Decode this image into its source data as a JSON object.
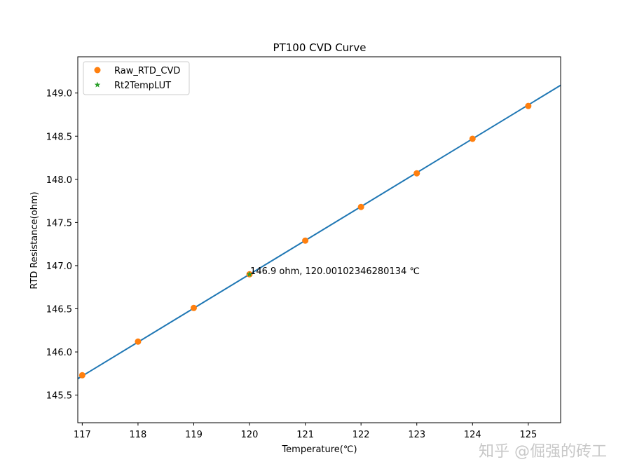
{
  "chart_data": {
    "type": "line",
    "title": "PT100 CVD Curve",
    "xlabel": "Temperature(℃)",
    "ylabel": "RTD Resistance(ohm)",
    "xlim": [
      116.92,
      125.58
    ],
    "ylim": [
      145.18,
      149.42
    ],
    "xticks": [
      117,
      118,
      119,
      120,
      121,
      122,
      123,
      124,
      125
    ],
    "yticks": [
      145.5,
      146.0,
      146.5,
      147.0,
      147.5,
      148.0,
      148.5,
      149.0
    ],
    "xtick_labels": [
      "117",
      "118",
      "119",
      "120",
      "121",
      "122",
      "123",
      "124",
      "125"
    ],
    "ytick_labels": [
      "145.5",
      "146.0",
      "146.5",
      "147.0",
      "147.5",
      "148.0",
      "148.5",
      "149.0"
    ],
    "grid": false,
    "legend_position": "upper-left",
    "series": [
      {
        "kind": "line",
        "color": "#1f77b4",
        "x": [
          116.92,
          125.58
        ],
        "y": [
          145.69,
          149.09
        ]
      },
      {
        "name": "Raw_RTD_CVD",
        "kind": "markers-circle",
        "color": "#ff7f0e",
        "x": [
          117,
          118,
          119,
          120,
          121,
          122,
          123,
          124,
          125
        ],
        "y": [
          145.73,
          146.12,
          146.51,
          146.9,
          147.29,
          147.68,
          148.07,
          148.47,
          148.85
        ]
      },
      {
        "name": "Rt2TempLUT",
        "kind": "markers-star",
        "color": "#2ca02c",
        "x": [
          120.001
        ],
        "y": [
          146.9
        ]
      }
    ],
    "annotations": [
      {
        "text": "146.9 ohm, 120.00102346280134 ℃",
        "x": 120.0,
        "y": 146.9
      }
    ]
  },
  "watermark": {
    "text": "知乎 @倔强的砖工"
  }
}
